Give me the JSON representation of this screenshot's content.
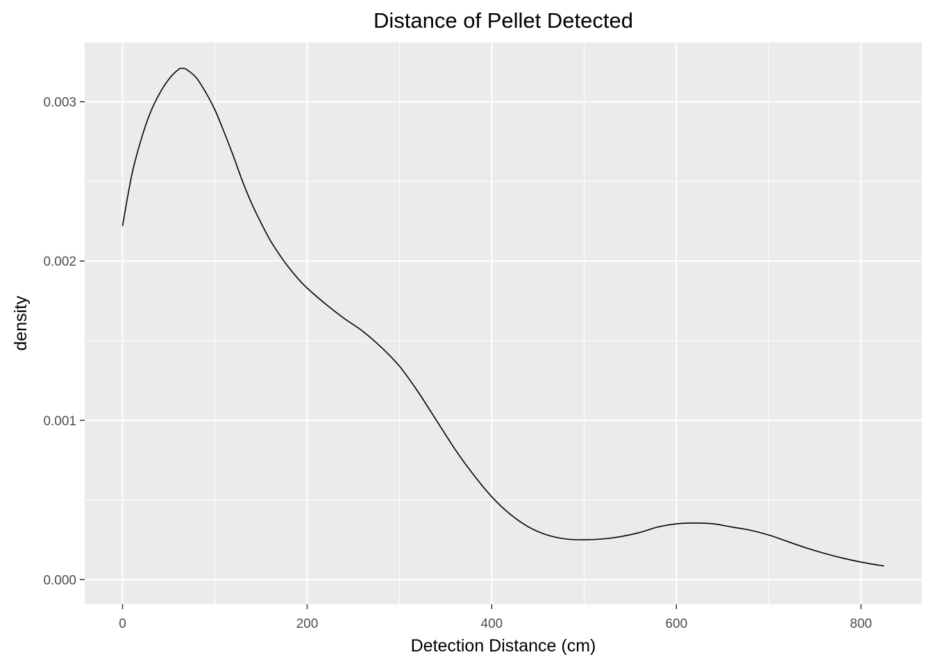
{
  "chart_data": {
    "type": "line",
    "title": "Distance of Pellet Detected",
    "xlabel": "Detection Distance (cm)",
    "ylabel": "density",
    "xlim": [
      -41,
      866
    ],
    "ylim": [
      -0.000155,
      0.003373
    ],
    "x_ticks": [
      0,
      200,
      400,
      600,
      800
    ],
    "x_tick_labels": [
      "0",
      "200",
      "400",
      "600",
      "800"
    ],
    "y_ticks": [
      0.0,
      0.001,
      0.002,
      0.003
    ],
    "y_tick_labels": [
      "0.000",
      "0.001",
      "0.002",
      "0.003"
    ],
    "grid": true,
    "panel_background": "#ebebeb",
    "grid_color": "#ffffff",
    "line_color": "#000000",
    "series": [
      {
        "x": [
          0,
          10,
          20,
          30,
          40,
          50,
          60,
          65,
          70,
          80,
          90,
          100,
          110,
          120,
          130,
          140,
          150,
          160,
          170,
          180,
          190,
          200,
          220,
          240,
          260,
          280,
          300,
          320,
          340,
          360,
          380,
          400,
          420,
          440,
          460,
          480,
          500,
          520,
          540,
          560,
          580,
          600,
          620,
          640,
          660,
          680,
          700,
          720,
          740,
          760,
          780,
          800,
          825
        ],
        "y": [
          0.00222,
          0.00254,
          0.00276,
          0.00293,
          0.00305,
          0.00314,
          0.0032,
          0.00321,
          0.0032,
          0.00315,
          0.00306,
          0.00295,
          0.00281,
          0.00266,
          0.0025,
          0.00236,
          0.00224,
          0.00213,
          0.00204,
          0.00196,
          0.00189,
          0.00183,
          0.00173,
          0.00164,
          0.00156,
          0.00146,
          0.00134,
          0.00118,
          0.001,
          0.00082,
          0.00066,
          0.00052,
          0.00041,
          0.00033,
          0.00028,
          0.000255,
          0.00025,
          0.000255,
          0.00027,
          0.000295,
          0.00033,
          0.00035,
          0.000355,
          0.00035,
          0.00033,
          0.00031,
          0.00028,
          0.00024,
          0.0002,
          0.000165,
          0.000135,
          0.00011,
          8.5e-05
        ]
      }
    ]
  }
}
